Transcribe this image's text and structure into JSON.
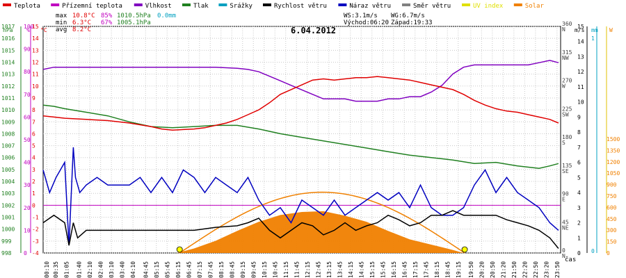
{
  "chart_data": {
    "type": "line",
    "title": "6.04.2012",
    "legend": [
      {
        "label": "Teplota",
        "color": "#e00000"
      },
      {
        "label": "Přízemní teplota",
        "color": "#c000c0"
      },
      {
        "label": "Vlhkost",
        "color": "#8000c0"
      },
      {
        "label": "Tlak",
        "color": "#208020"
      },
      {
        "label": "Srážky",
        "color": "#00a0c0"
      },
      {
        "label": "Rychlost větru",
        "color": "#000000"
      },
      {
        "label": "Náraz větru",
        "color": "#0000c0"
      },
      {
        "label": "Směr větru",
        "color": "#808080"
      },
      {
        "label": "UV index",
        "color": "#e0e000"
      },
      {
        "label": "Solar",
        "color": "#f08000"
      }
    ],
    "stats": {
      "max": {
        "label": "max",
        "temp": "10.8°C",
        "hum": "85%",
        "press": "1010.5hPa",
        "rain": "0.0mm"
      },
      "min": {
        "label": "min",
        "temp": "6.3°C",
        "hum": "67%",
        "press": "1005.1hPa"
      },
      "avg": {
        "label": "avg",
        "temp": "8.2°C"
      }
    },
    "wind_info": {
      "ws": "WS:3.1m/s",
      "wg": "WG:6.7m/s",
      "sunrise": "Východ:06:20",
      "sunset": "Západ:19:33"
    },
    "xlabel": "čas",
    "x_ticks": [
      "00:10",
      "00:35",
      "01:05",
      "01:40",
      "02:10",
      "02:40",
      "03:10",
      "03:40",
      "04:10",
      "04:45",
      "05:15",
      "05:45",
      "06:15",
      "06:45",
      "07:15",
      "07:45",
      "08:15",
      "08:45",
      "09:15",
      "09:45",
      "10:15",
      "10:45",
      "11:15",
      "11:45",
      "12:15",
      "12:45",
      "13:15",
      "13:45",
      "14:15",
      "14:45",
      "15:15",
      "15:45",
      "16:15",
      "16:45",
      "17:15",
      "17:45",
      "18:15",
      "18:45",
      "19:15",
      "19:50",
      "20:20",
      "20:50",
      "21:20",
      "21:50",
      "22:20",
      "22:50",
      "23:20",
      "23:50"
    ],
    "axes": {
      "press": {
        "unit": "hPa",
        "ticks": [
          "998",
          "999",
          "1000",
          "1001",
          "1002",
          "1003",
          "1004",
          "1005",
          "1006",
          "1007",
          "1008",
          "1009",
          "1010",
          "1011",
          "1012",
          "1013",
          "1014",
          "1015",
          "1016",
          "1017"
        ]
      },
      "hum": {
        "unit": "%",
        "ticks": [
          "0",
          "10",
          "20",
          "30",
          "40",
          "50",
          "60",
          "70",
          "80",
          "90",
          "100"
        ]
      },
      "temp": {
        "unit": "°C",
        "ticks": [
          "-4",
          "-3",
          "-2",
          "-1",
          "0",
          "1",
          "2",
          "3",
          "4",
          "5",
          "6",
          "7",
          "8",
          "9",
          "10",
          "11",
          "12",
          "13",
          "14",
          "15"
        ]
      },
      "wdir": {
        "unit": "",
        "ticks": [
          [
            "0",
            "N"
          ],
          [
            "45",
            "NE"
          ],
          [
            "90",
            "E"
          ],
          [
            "135",
            "SE"
          ],
          [
            "180",
            "S"
          ],
          [
            "225",
            "SW"
          ],
          [
            "270",
            "W"
          ],
          [
            "315",
            "NW"
          ],
          [
            "360",
            "N"
          ]
        ]
      },
      "wspeed": {
        "unit": "m/s",
        "ticks": [
          "0",
          "1",
          "2",
          "3",
          "4",
          "5",
          "6",
          "7",
          "8",
          "9",
          "10",
          "11",
          "12",
          "13",
          "14",
          "15"
        ]
      },
      "rain": {
        "unit": "mm",
        "ticks": [
          "0",
          "1"
        ]
      },
      "solar": {
        "unit": "W",
        "ticks": [
          "0",
          "150",
          "300",
          "450",
          "600",
          "750",
          "900",
          "1050",
          "1200",
          "1350",
          "1500"
        ]
      }
    },
    "ylim_temp": [
      -4,
      15
    ],
    "sunrise_hour": 6.33,
    "sunset_hour": 19.55,
    "series": [
      {
        "name": "Teplota",
        "unit": "°C",
        "x": [
          0,
          0.5,
          1,
          2,
          3,
          4,
          5,
          5.5,
          6,
          6.5,
          7,
          7.5,
          8,
          8.5,
          9,
          9.5,
          10,
          10.5,
          11,
          11.5,
          12,
          12.5,
          13,
          13.5,
          14,
          14.5,
          15,
          15.5,
          16,
          16.5,
          17,
          17.5,
          18,
          18.5,
          19,
          19.5,
          20,
          20.5,
          21,
          21.5,
          22,
          22.5,
          23,
          23.5,
          23.9
        ],
        "y": [
          7.5,
          7.4,
          7.3,
          7.2,
          7.1,
          6.9,
          6.6,
          6.4,
          6.3,
          6.35,
          6.4,
          6.5,
          6.7,
          6.9,
          7.2,
          7.6,
          8.0,
          8.6,
          9.3,
          9.7,
          10.1,
          10.5,
          10.6,
          10.5,
          10.6,
          10.7,
          10.7,
          10.8,
          10.7,
          10.6,
          10.5,
          10.3,
          10.1,
          9.9,
          9.7,
          9.3,
          8.8,
          8.4,
          8.1,
          7.9,
          7.8,
          7.6,
          7.4,
          7.2,
          6.9
        ]
      },
      {
        "name": "Vlhkost",
        "unit": "%",
        "x": [
          0,
          0.5,
          1,
          2,
          3,
          4,
          5,
          6,
          7,
          8,
          9,
          9.5,
          10,
          10.5,
          11,
          11.5,
          12,
          12.5,
          13,
          13.5,
          14,
          14.5,
          15,
          15.5,
          16,
          16.5,
          17,
          17.5,
          18,
          18.5,
          19,
          19.5,
          20,
          20.5,
          21,
          21.5,
          22,
          22.5,
          23,
          23.5,
          23.9
        ],
        "y": [
          81,
          82,
          82,
          82,
          82,
          82,
          82,
          82,
          82,
          82,
          81.5,
          81,
          80,
          78,
          76,
          74,
          72,
          70,
          68,
          68,
          68,
          67,
          67,
          67,
          68,
          68,
          69,
          69,
          71,
          74,
          79,
          82,
          83,
          83,
          83,
          83,
          83,
          83,
          84,
          85,
          84
        ]
      },
      {
        "name": "Tlak",
        "unit": "hPa",
        "x": [
          0,
          0.5,
          1,
          2,
          3,
          4,
          5,
          6,
          7,
          8,
          9,
          10,
          11,
          12,
          13,
          14,
          15,
          16,
          17,
          18,
          19,
          20,
          21,
          22,
          23,
          23.5,
          23.9
        ],
        "y": [
          1010.4,
          1010.3,
          1010.1,
          1009.8,
          1009.5,
          1009.0,
          1008.6,
          1008.5,
          1008.6,
          1008.7,
          1008.7,
          1008.4,
          1008.0,
          1007.7,
          1007.4,
          1007.1,
          1006.8,
          1006.5,
          1006.2,
          1006.0,
          1005.8,
          1005.5,
          1005.6,
          1005.3,
          1005.1,
          1005.3,
          1005.5
        ]
      },
      {
        "name": "Rychlost větru",
        "unit": "m/s",
        "x": [
          0,
          0.5,
          1,
          1.2,
          1.4,
          1.6,
          2,
          3,
          4,
          5,
          6,
          7,
          8,
          9,
          9.5,
          10,
          10.5,
          11,
          11.5,
          12,
          12.5,
          13,
          13.5,
          14,
          14.5,
          15,
          15.5,
          16,
          16.5,
          17,
          17.5,
          18,
          18.5,
          19,
          19.5,
          20,
          20.5,
          21,
          21.5,
          22,
          22.5,
          23,
          23.5,
          23.9
        ],
        "y": [
          2,
          2.5,
          2,
          0.5,
          2,
          1,
          1.5,
          1.5,
          1.5,
          1.5,
          1.5,
          1.5,
          1.7,
          1.8,
          2,
          2.3,
          1.5,
          1,
          1.5,
          2,
          1.8,
          1.2,
          1.5,
          2,
          1.5,
          1.8,
          2,
          2.5,
          2.2,
          1.8,
          2,
          2.5,
          2.5,
          2.8,
          2.5,
          2.5,
          2.5,
          2.5,
          2.2,
          2,
          1.8,
          1.5,
          1,
          0.3
        ]
      },
      {
        "name": "Náraz větru",
        "unit": "m/s",
        "x": [
          0,
          0.3,
          0.6,
          1,
          1.2,
          1.4,
          1.5,
          1.7,
          2,
          2.5,
          3,
          3.5,
          4,
          4.5,
          5,
          5.5,
          6,
          6.5,
          7,
          7.5,
          8,
          8.5,
          9,
          9.5,
          10,
          10.5,
          11,
          11.5,
          12,
          12.5,
          13,
          13.5,
          14,
          14.5,
          15,
          15.5,
          16,
          16.5,
          17,
          17.5,
          18,
          18.5,
          19,
          19.5,
          20,
          20.5,
          21,
          21.5,
          22,
          22.5,
          23,
          23.5,
          23.9
        ],
        "y": [
          5.5,
          4,
          5,
          6,
          0.5,
          7,
          5,
          4,
          4.5,
          5,
          4.5,
          4.5,
          4.5,
          5,
          4,
          5,
          4,
          5.5,
          5,
          4,
          5,
          4.5,
          4,
          5,
          3.5,
          2.5,
          3,
          2,
          3.5,
          3,
          2.5,
          3.5,
          2.5,
          3,
          3.5,
          4,
          3.5,
          4,
          3,
          4.5,
          3,
          2.5,
          2.5,
          3,
          4.5,
          5.5,
          4,
          5,
          4,
          3.5,
          3,
          2,
          1.5
        ]
      },
      {
        "name": "Solar",
        "unit": "W",
        "x": [
          6.2,
          7,
          8,
          9,
          10,
          11,
          12,
          13,
          14,
          15,
          16,
          17,
          18,
          19,
          19.5
        ],
        "y": [
          0,
          60,
          160,
          290,
          410,
          500,
          540,
          550,
          490,
          410,
          290,
          180,
          110,
          40,
          0
        ]
      }
    ]
  }
}
